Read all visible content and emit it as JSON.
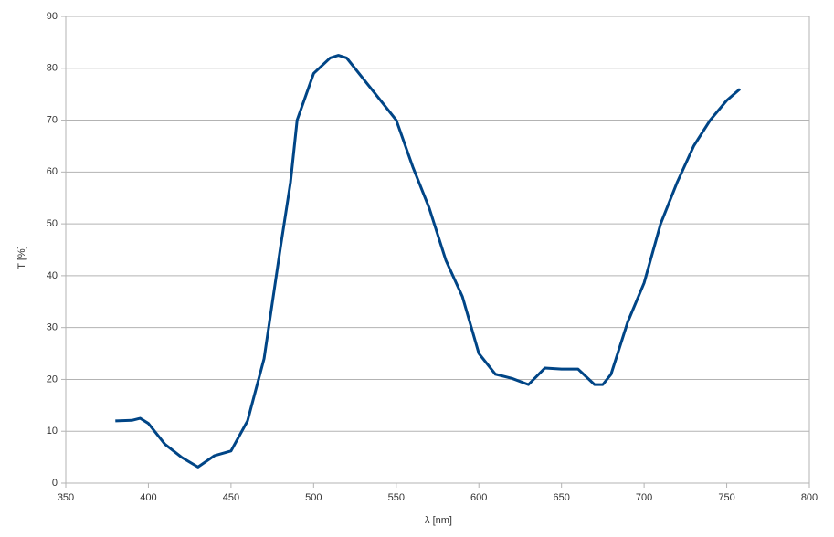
{
  "chart_data": {
    "type": "line",
    "x_label": "λ [nm]",
    "y_label": "T [%]",
    "x": [
      380,
      390,
      395,
      400,
      410,
      420,
      430,
      440,
      450,
      460,
      470,
      480,
      486,
      490,
      500,
      510,
      515,
      520,
      530,
      540,
      550,
      560,
      570,
      580,
      590,
      600,
      610,
      620,
      630,
      640,
      650,
      660,
      670,
      675,
      680,
      690,
      700,
      710,
      720,
      730,
      740,
      750,
      758
    ],
    "series": [
      {
        "name": "T",
        "color": "#004586",
        "values": [
          12,
          12.1,
          12.5,
          11.5,
          7.5,
          5,
          3.1,
          5.3,
          6.2,
          12,
          24,
          45.6,
          58,
          70,
          79,
          82,
          82.5,
          82,
          78,
          74,
          70,
          61,
          53,
          43,
          36,
          25,
          21,
          20.2,
          19,
          22.2,
          22,
          22,
          19,
          19,
          21,
          31,
          38.6,
          50,
          58,
          65,
          70,
          73.8,
          76
        ]
      }
    ],
    "xlim": [
      350,
      800
    ],
    "xticks": [
      350,
      400,
      450,
      500,
      550,
      600,
      650,
      700,
      750,
      800
    ],
    "ylim": [
      0,
      90
    ],
    "yticks": [
      0,
      10,
      20,
      30,
      40,
      50,
      60,
      70,
      80,
      90
    ],
    "grid": true
  }
}
